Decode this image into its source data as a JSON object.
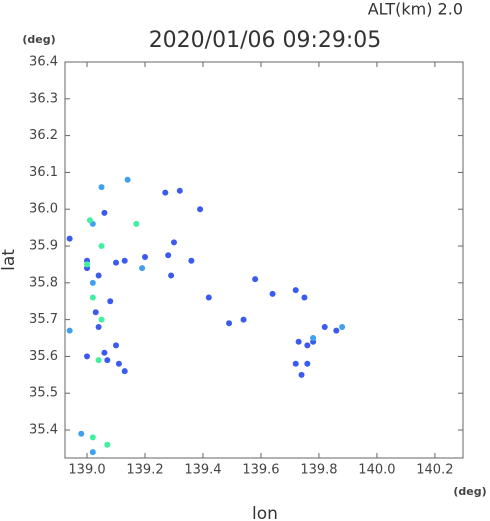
{
  "chart_data": {
    "type": "scatter",
    "title": "2020/01/06 09:29:05",
    "subtitle": "ALT(km) 2.0",
    "x_label": "lon",
    "y_label": "lat",
    "x_unit": "(deg)",
    "y_unit": "(deg)",
    "xlim": [
      138.924,
      140.297
    ],
    "ylim": [
      35.324,
      36.4
    ],
    "xticks": [
      {
        "value": 139,
        "label": "139.0"
      },
      {
        "value": 139.2,
        "label": "139.2"
      },
      {
        "value": 139.4,
        "label": "139.4"
      },
      {
        "value": 139.6,
        "label": "139.6"
      },
      {
        "value": 139.8,
        "label": "139.8"
      },
      {
        "value": 140,
        "label": "140.0"
      },
      {
        "value": 140.2,
        "label": "140.2"
      }
    ],
    "yticks": [
      {
        "value": 35.4,
        "label": "35.4"
      },
      {
        "value": 35.5,
        "label": "35.5"
      },
      {
        "value": 35.6,
        "label": "35.6"
      },
      {
        "value": 35.7,
        "label": "35.7"
      },
      {
        "value": 35.8,
        "label": "35.8"
      },
      {
        "value": 35.9,
        "label": "35.9"
      },
      {
        "value": 36,
        "label": "36.0"
      },
      {
        "value": 36.1,
        "label": "36.1"
      },
      {
        "value": 36.2,
        "label": "36.2"
      },
      {
        "value": 36.3,
        "label": "36.3"
      },
      {
        "value": 36.4,
        "label": "36.4"
      }
    ],
    "series": [
      {
        "color": "#3a5af0",
        "x": [
          139.0,
          139.0,
          139.04,
          139.1,
          139.13,
          139.2,
          139.28,
          139.3,
          139.29,
          139.36,
          139.39,
          139.42,
          139.58,
          139.64,
          139.72,
          139.75,
          139.54,
          139.49,
          139.73,
          139.76,
          139.78,
          139.82,
          139.86,
          139.72,
          139.76,
          139.74,
          139.03,
          139.04,
          139.06,
          139.07,
          139.1,
          139.11,
          139.0,
          139.08,
          139.06,
          139.32,
          139.27,
          139.13,
          138.94
        ],
        "values": [
          35.86,
          35.84,
          35.82,
          35.855,
          35.86,
          35.87,
          35.875,
          35.91,
          35.82,
          35.86,
          36.0,
          35.76,
          35.81,
          35.77,
          35.78,
          35.76,
          35.7,
          35.69,
          35.64,
          35.63,
          35.64,
          35.68,
          35.67,
          35.58,
          35.58,
          35.55,
          35.72,
          35.68,
          35.61,
          35.59,
          35.63,
          35.58,
          35.6,
          35.75,
          35.99,
          36.05,
          36.045,
          35.56,
          35.92
        ]
      },
      {
        "color": "#40a0f0",
        "x": [
          138.98,
          139.02,
          139.05,
          139.14,
          139.02,
          138.94,
          139.02,
          139.78,
          139.88,
          139.19
        ],
        "values": [
          35.39,
          35.34,
          36.06,
          36.08,
          35.96,
          35.67,
          35.8,
          35.65,
          35.68,
          35.84
        ]
      },
      {
        "color": "#40f0a0",
        "x": [
          139.02,
          139.07,
          139.02,
          139.04,
          139.05,
          139.17,
          139.01,
          139.05,
          139.0
        ],
        "values": [
          35.38,
          35.36,
          35.76,
          35.59,
          35.7,
          35.96,
          35.97,
          35.9,
          35.85
        ]
      }
    ]
  }
}
